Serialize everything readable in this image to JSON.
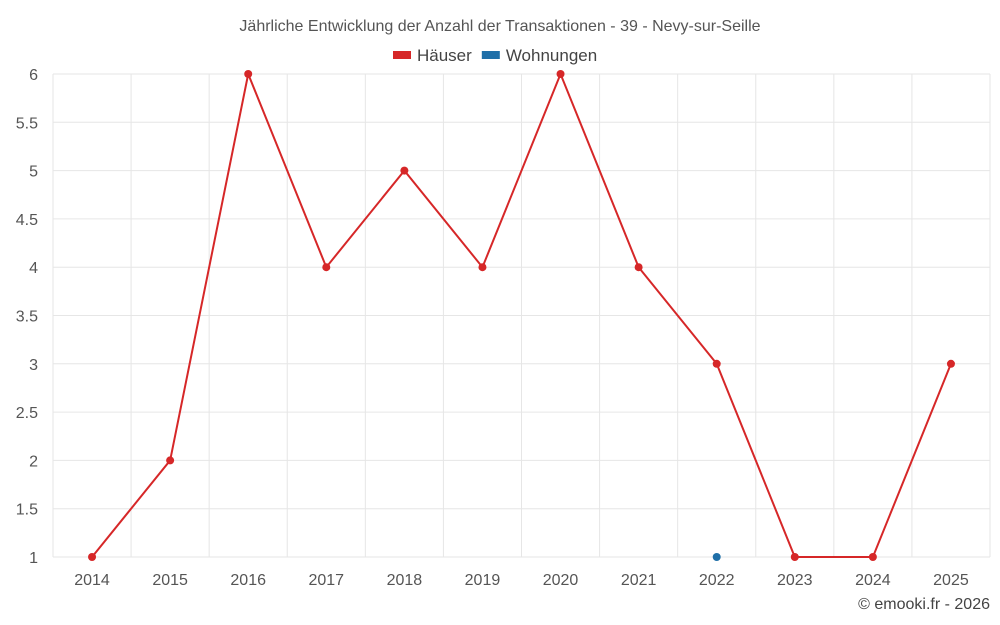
{
  "chart_data": {
    "type": "line",
    "title": "Jährliche Entwicklung der Anzahl der Transaktionen - 39 - Nevy-sur-Seille",
    "categories": [
      "2014",
      "2015",
      "2016",
      "2017",
      "2018",
      "2019",
      "2020",
      "2021",
      "2022",
      "2023",
      "2024",
      "2025"
    ],
    "series": [
      {
        "name": "Häuser",
        "color": "#d62728",
        "values": [
          1,
          2,
          6,
          4,
          5,
          4,
          6,
          4,
          3,
          1,
          1,
          3
        ]
      },
      {
        "name": "Wohnungen",
        "color": "#1f6fa8",
        "values": [
          null,
          null,
          null,
          null,
          null,
          null,
          null,
          null,
          1,
          null,
          null,
          null
        ]
      }
    ],
    "ylim": [
      1,
      6
    ],
    "yticks": [
      "1",
      "1.5",
      "2",
      "2.5",
      "3",
      "3.5",
      "4",
      "4.5",
      "5",
      "5.5",
      "6"
    ],
    "grid": true,
    "legend_position": "top-center",
    "credit": "© emooki.fr - 2026"
  }
}
